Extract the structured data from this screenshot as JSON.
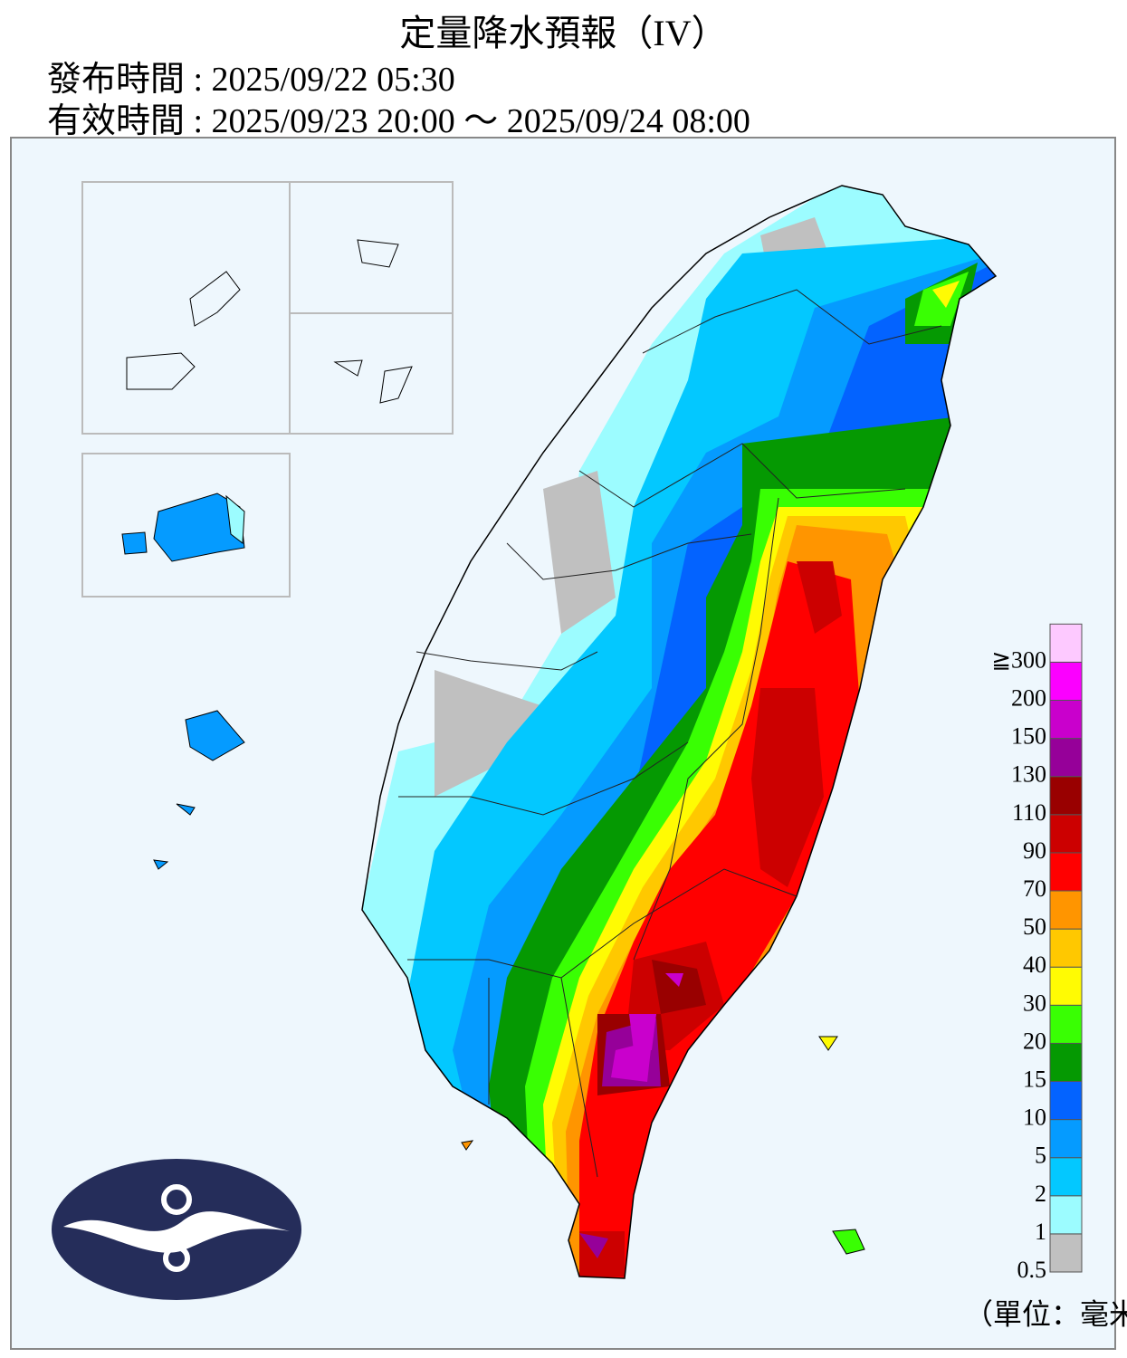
{
  "header": {
    "title": "定量降水預報（IV）",
    "issued": "發布時間 : 2025/09/22 05:30",
    "valid": "有效時間 : 2025/09/23 20:00 ～ 2025/09/24 08:00"
  },
  "legend": {
    "levels": [
      {
        "label": "0.5",
        "color": "#c0c0c0"
      },
      {
        "label": "1",
        "color": "#9cfcff"
      },
      {
        "label": "2",
        "color": "#03c8ff"
      },
      {
        "label": "5",
        "color": "#059bff"
      },
      {
        "label": "10",
        "color": "#0363ff"
      },
      {
        "label": "15",
        "color": "#059902"
      },
      {
        "label": "20",
        "color": "#39ff03"
      },
      {
        "label": "30",
        "color": "#fffb03"
      },
      {
        "label": "40",
        "color": "#ffc800"
      },
      {
        "label": "50",
        "color": "#ff9500"
      },
      {
        "label": "70",
        "color": "#ff0000"
      },
      {
        "label": "90",
        "color": "#cc0000"
      },
      {
        "label": "110",
        "color": "#990000"
      },
      {
        "label": "130",
        "color": "#960099"
      },
      {
        "label": "150",
        "color": "#c900cc"
      },
      {
        "label": "200",
        "color": "#fb00ff"
      },
      {
        "label": "≧300",
        "color": "#fdc9ff"
      }
    ],
    "unit": "（單位：毫米）"
  }
}
